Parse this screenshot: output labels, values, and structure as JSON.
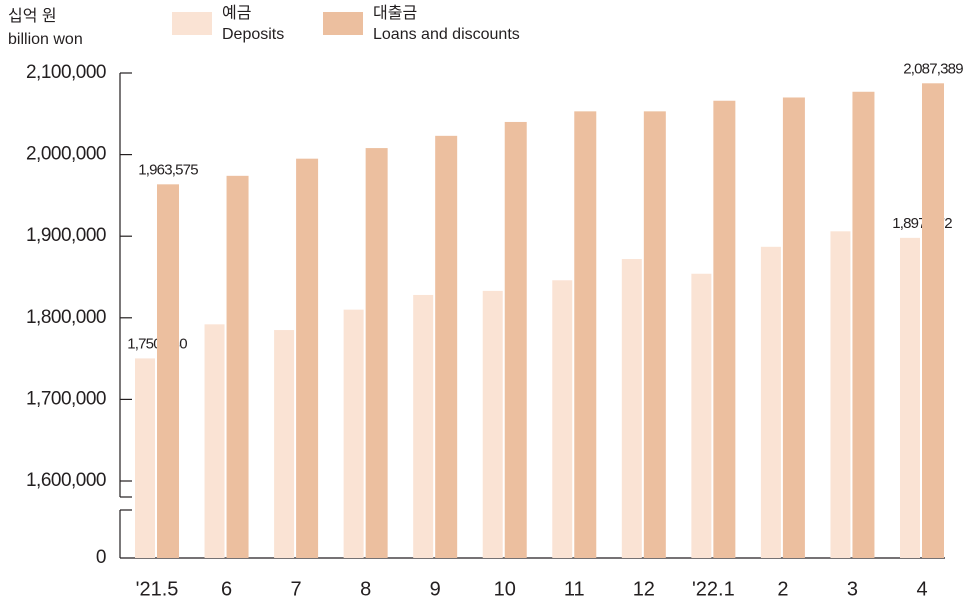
{
  "chart_data": {
    "type": "bar",
    "ylabel": "십억 원",
    "ylabel_en": "billion won",
    "categories": [
      "'21.5",
      "6",
      "7",
      "8",
      "9",
      "10",
      "11",
      "12",
      "'22.1",
      "2",
      "3",
      "4"
    ],
    "series": [
      {
        "name": "예금",
        "name_en": "Deposits",
        "color": "#fae3d4",
        "values": [
          1750230,
          1792000,
          1785000,
          1810000,
          1828000,
          1833000,
          1846000,
          1872000,
          1854000,
          1887000,
          1906000,
          1897972
        ],
        "value_labels": [
          "1,750,230",
          null,
          null,
          null,
          null,
          null,
          null,
          null,
          null,
          null,
          null,
          "1,897,972"
        ]
      },
      {
        "name": "대출금",
        "name_en": "Loans and discounts",
        "color": "#ecbf9f",
        "values": [
          1963575,
          1974000,
          1995000,
          2008000,
          2023000,
          2040000,
          2053000,
          2053000,
          2066000,
          2070000,
          2077000,
          2087389
        ],
        "value_labels": [
          "1,963,575",
          null,
          null,
          null,
          null,
          null,
          null,
          null,
          null,
          null,
          null,
          "2,087,389"
        ]
      }
    ],
    "ylim": [
      1600000,
      2100000
    ],
    "axis_break": true,
    "yticks": [
      0,
      {
        "value": 1600000,
        "label": "1,600,000"
      },
      {
        "value": 1700000,
        "label": "1,700,000"
      },
      {
        "value": 1800000,
        "label": "1,800,000"
      },
      {
        "value": 1900000,
        "label": "1,900,000"
      },
      {
        "value": 2000000,
        "label": "2,000,000"
      },
      {
        "value": 2100000,
        "label": "2,100,000"
      }
    ]
  }
}
